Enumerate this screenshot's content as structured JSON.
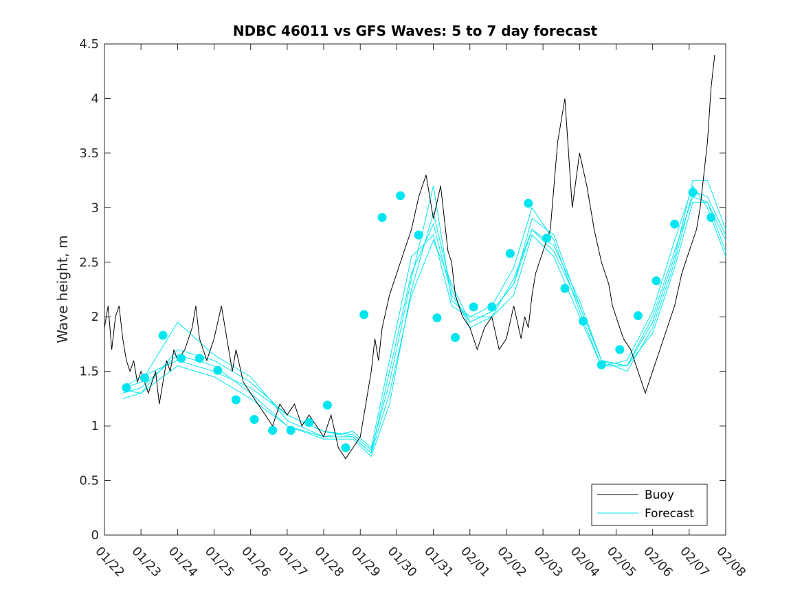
{
  "chart_data": {
    "type": "line",
    "title": "NDBC 46011 vs GFS Waves: 5 to 7 day forecast",
    "xlabel": "",
    "ylabel": "Wave height, m",
    "xlim": [
      0,
      17
    ],
    "ylim": [
      0,
      4.5
    ],
    "grid": false,
    "legend_position": "bottom-right",
    "x_tick_labels": [
      "01/22",
      "01/23",
      "01/24",
      "01/25",
      "01/26",
      "01/27",
      "01/28",
      "01/29",
      "01/30",
      "01/31",
      "02/01",
      "02/02",
      "02/03",
      "02/04",
      "02/05",
      "02/06",
      "02/07",
      "02/08"
    ],
    "y_ticks": [
      0,
      0.5,
      1,
      1.5,
      2,
      2.5,
      3,
      3.5,
      4,
      4.5
    ],
    "y_tick_labels": [
      "0",
      "0.5",
      "1",
      "1.5",
      "2",
      "2.5",
      "3",
      "3.5",
      "4",
      "4.5"
    ],
    "colors": {
      "buoy": "#000000",
      "forecast": "#00e5ee",
      "axes": "#262626"
    },
    "buoy_series": {
      "name": "Buoy",
      "x": [
        0.0,
        0.1,
        0.2,
        0.3,
        0.4,
        0.5,
        0.6,
        0.7,
        0.8,
        0.9,
        1.0,
        1.2,
        1.4,
        1.5,
        1.6,
        1.7,
        1.8,
        1.9,
        2.0,
        2.2,
        2.4,
        2.5,
        2.6,
        2.8,
        3.0,
        3.2,
        3.4,
        3.5,
        3.6,
        3.8,
        4.0,
        4.2,
        4.4,
        4.6,
        4.8,
        5.0,
        5.2,
        5.4,
        5.6,
        5.8,
        6.0,
        6.2,
        6.4,
        6.6,
        6.8,
        7.0,
        7.1,
        7.2,
        7.3,
        7.4,
        7.5,
        7.6,
        7.8,
        8.0,
        8.2,
        8.4,
        8.6,
        8.8,
        9.0,
        9.2,
        9.4,
        9.5,
        9.6,
        9.8,
        10.0,
        10.2,
        10.4,
        10.6,
        10.8,
        11.0,
        11.2,
        11.4,
        11.5,
        11.6,
        11.7,
        11.8,
        12.0,
        12.2,
        12.4,
        12.6,
        12.8,
        13.0,
        13.2,
        13.4,
        13.6,
        13.8,
        13.9,
        14.0,
        14.2,
        14.4,
        14.6,
        14.8,
        15.0,
        15.2,
        15.4,
        15.6,
        15.8,
        16.0,
        16.2,
        16.3,
        16.4,
        16.5,
        16.6,
        16.7
      ],
      "values": [
        1.9,
        2.1,
        1.7,
        2.0,
        2.1,
        1.8,
        1.6,
        1.5,
        1.6,
        1.4,
        1.5,
        1.3,
        1.5,
        1.2,
        1.4,
        1.6,
        1.5,
        1.7,
        1.6,
        1.7,
        1.9,
        2.1,
        1.8,
        1.6,
        1.8,
        2.1,
        1.7,
        1.5,
        1.7,
        1.4,
        1.3,
        1.2,
        1.1,
        1.0,
        1.2,
        1.1,
        1.2,
        1.0,
        1.1,
        1.0,
        0.9,
        1.1,
        0.8,
        0.7,
        0.8,
        0.9,
        1.1,
        1.3,
        1.5,
        1.8,
        1.6,
        1.9,
        2.2,
        2.4,
        2.6,
        2.8,
        3.1,
        3.3,
        2.9,
        3.2,
        2.6,
        2.5,
        2.2,
        2.0,
        1.9,
        1.7,
        1.9,
        2.0,
        1.7,
        1.8,
        2.1,
        1.8,
        2.0,
        1.9,
        2.2,
        2.4,
        2.6,
        2.8,
        3.6,
        4.0,
        3.0,
        3.5,
        3.2,
        2.8,
        2.5,
        2.3,
        2.1,
        2.0,
        1.8,
        1.7,
        1.5,
        1.3,
        1.5,
        1.7,
        1.9,
        2.1,
        2.4,
        2.6,
        2.8,
        3.0,
        3.3,
        3.6,
        4.1,
        4.4
      ]
    },
    "forecast_series": [
      {
        "name": "Forecast",
        "x": [
          0.5,
          1.0,
          2.0,
          3.0,
          4.0,
          5.0,
          6.0,
          6.8,
          7.3,
          7.8,
          8.4,
          9.0,
          9.5,
          10.0,
          10.6,
          11.2,
          11.7,
          12.3,
          13.0,
          13.6,
          14.3,
          15.0,
          15.6,
          16.1,
          16.5,
          17.0
        ],
        "values": [
          1.33,
          1.3,
          1.7,
          1.6,
          1.4,
          1.1,
          0.95,
          0.9,
          0.75,
          1.5,
          2.4,
          2.85,
          2.2,
          1.95,
          2.05,
          2.3,
          2.9,
          2.75,
          2.1,
          1.6,
          1.55,
          2.0,
          2.6,
          3.1,
          3.05,
          2.7
        ]
      },
      {
        "name": "Forecast",
        "x": [
          0.5,
          1.0,
          2.0,
          3.0,
          4.0,
          5.0,
          6.0,
          6.8,
          7.3,
          7.8,
          8.4,
          9.0,
          9.5,
          10.0,
          10.6,
          11.2,
          11.7,
          12.3,
          13.0,
          13.6,
          14.3,
          15.0,
          15.6,
          16.1,
          16.5,
          17.0
        ],
        "values": [
          1.35,
          1.4,
          1.95,
          1.65,
          1.45,
          1.05,
          0.9,
          0.95,
          0.8,
          1.6,
          2.55,
          2.75,
          2.1,
          2.0,
          2.1,
          2.45,
          3.0,
          2.7,
          2.05,
          1.55,
          1.6,
          2.05,
          2.7,
          3.2,
          3.0,
          2.55
        ]
      },
      {
        "name": "Forecast",
        "x": [
          0.5,
          1.0,
          2.0,
          3.0,
          4.0,
          5.0,
          6.0,
          6.8,
          7.3,
          7.8,
          8.4,
          9.0,
          9.5,
          10.0,
          10.6,
          11.2,
          11.7,
          12.3,
          13.0,
          13.6,
          14.3,
          15.0,
          15.6,
          16.1,
          16.5,
          17.0
        ],
        "values": [
          1.3,
          1.35,
          1.65,
          1.55,
          1.3,
          1.0,
          0.88,
          0.88,
          0.72,
          1.2,
          2.25,
          2.95,
          2.25,
          1.9,
          2.0,
          2.35,
          2.8,
          2.65,
          2.15,
          1.6,
          1.5,
          1.9,
          2.5,
          3.15,
          3.1,
          2.75
        ]
      },
      {
        "name": "Forecast",
        "x": [
          0.5,
          1.0,
          2.0,
          3.0,
          4.0,
          5.0,
          6.0,
          6.8,
          7.3,
          7.8,
          8.4,
          9.0,
          9.5,
          10.0,
          10.6,
          11.2,
          11.7,
          12.3,
          13.0,
          13.6,
          14.3,
          15.0,
          15.6,
          16.1,
          16.5,
          17.0
        ],
        "values": [
          1.35,
          1.45,
          1.6,
          1.5,
          1.35,
          1.1,
          0.95,
          0.92,
          0.78,
          1.4,
          2.35,
          3.2,
          2.15,
          2.0,
          2.0,
          2.2,
          2.75,
          2.55,
          2.0,
          1.55,
          1.55,
          1.95,
          2.55,
          3.25,
          3.25,
          2.8
        ]
      },
      {
        "name": "Forecast",
        "x": [
          0.5,
          1.0,
          2.0,
          3.0,
          4.0,
          5.0,
          6.0,
          6.8,
          7.3,
          7.8,
          8.4,
          9.0,
          9.5,
          10.0,
          10.6,
          11.2,
          11.7,
          12.3,
          13.0,
          13.6,
          14.3,
          15.0,
          15.6,
          16.1,
          16.5,
          17.0
        ],
        "values": [
          1.25,
          1.3,
          1.55,
          1.45,
          1.25,
          1.0,
          0.9,
          0.9,
          0.75,
          1.3,
          2.2,
          2.7,
          2.3,
          1.95,
          2.05,
          2.3,
          2.8,
          2.6,
          2.1,
          1.6,
          1.55,
          1.85,
          2.45,
          3.05,
          3.05,
          2.6
        ]
      }
    ],
    "forecast_markers": {
      "name": "Forecast markers",
      "x": [
        0.6,
        1.1,
        1.6,
        2.1,
        2.6,
        3.1,
        3.6,
        4.1,
        4.6,
        5.1,
        5.6,
        6.1,
        6.6,
        7.1,
        7.6,
        8.1,
        8.6,
        9.1,
        9.6,
        10.1,
        10.6,
        11.1,
        11.6,
        12.1,
        12.6,
        13.1,
        13.6,
        14.1,
        14.6,
        15.1,
        15.6,
        16.1,
        16.6
      ],
      "values": [
        1.35,
        1.44,
        1.83,
        1.62,
        1.62,
        1.51,
        1.24,
        1.06,
        0.96,
        0.96,
        1.03,
        1.19,
        0.8,
        2.02,
        2.91,
        3.11,
        2.75,
        1.99,
        1.81,
        2.09,
        2.09,
        2.58,
        3.04,
        2.72,
        2.26,
        1.96,
        1.56,
        1.7,
        2.01,
        2.33,
        2.85,
        3.14,
        2.91
      ]
    },
    "legend": {
      "buoy": "Buoy",
      "forecast": "Forecast"
    }
  }
}
